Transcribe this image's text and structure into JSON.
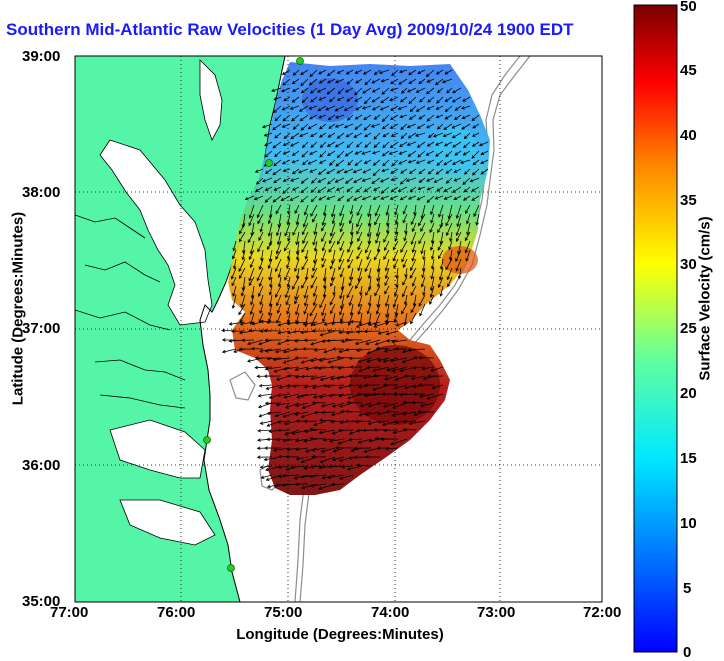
{
  "map": {
    "title": "Southern Mid-Atlantic Raw Velocities (1 Day Avg) 2009/10/24 1900 EDT",
    "xlabel": "Longitude (Degrees:Minutes)",
    "ylabel": "Latitude (Degrees:Minutes)",
    "x_ticks": [
      "77:00",
      "76:00",
      "75:00",
      "74:00",
      "73:00",
      "72:00"
    ],
    "y_ticks": [
      "39:00",
      "38:00",
      "37:00",
      "36:00",
      "35:00"
    ],
    "land_color": "#55f5a8",
    "water_color": "#ffffff",
    "arrow_color": "#000000",
    "station_color": "#22cc22",
    "grid": "dotted"
  },
  "colorbar": {
    "label": "Surface Velocity (cm/s)",
    "ticks": [
      "0",
      "5",
      "10",
      "15",
      "20",
      "25",
      "30",
      "35",
      "40",
      "45",
      "50"
    ],
    "min": 0,
    "max": 50,
    "colormap": "jet"
  }
}
